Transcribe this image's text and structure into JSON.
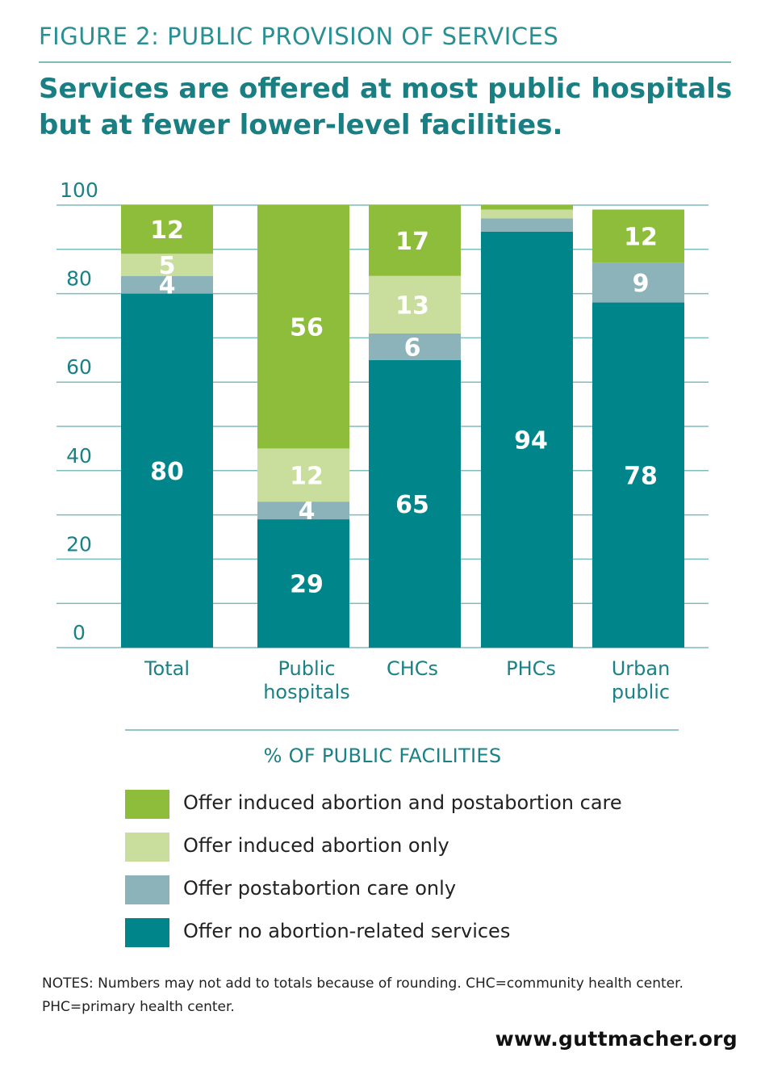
{
  "figure_label": "FIGURE 2: PUBLIC PROVISION OF SERVICES",
  "headline": "Services are offered at most public hospitals but at fewer lower-level facilities.",
  "legend_title": "% OF PUBLIC FACILITIES",
  "notes": "NOTES: Numbers may not add to totals because of rounding. CHC=community health center. PHC=primary health center.",
  "source_url": "www.guttmacher.org",
  "colors": {
    "induced_and_postabortion": "#8dbd3a",
    "induced_only": "#c9de9c",
    "postabortion_only": "#8cb3ba",
    "none": "#00858b",
    "axis_text": "#1a8185",
    "grid": "#7fbcbd"
  },
  "chart_data": {
    "type": "bar",
    "stacked": true,
    "title": "",
    "xlabel": "",
    "ylabel": "",
    "ylim": [
      0,
      100
    ],
    "yticks": [
      0,
      20,
      40,
      60,
      80,
      100
    ],
    "grid": true,
    "categories": [
      [
        "Total"
      ],
      [
        "Public",
        "hospitals"
      ],
      [
        "CHCs"
      ],
      [
        "PHCs"
      ],
      [
        "Urban",
        "public"
      ]
    ],
    "series": [
      {
        "name": "Offer no abortion-related services",
        "key": "none",
        "values": [
          80,
          29,
          65,
          94,
          78
        ],
        "labels": [
          "80",
          "29",
          "65",
          "94",
          "78"
        ]
      },
      {
        "name": "Offer postabortion care only",
        "key": "postabortion_only",
        "values": [
          4,
          4,
          6,
          3,
          9
        ],
        "labels": [
          "4",
          "4",
          "6",
          "",
          "9"
        ]
      },
      {
        "name": "Offer induced abortion only",
        "key": "induced_only",
        "values": [
          5,
          12,
          13,
          2,
          0
        ],
        "labels": [
          "5",
          "12",
          "13",
          "",
          ""
        ]
      },
      {
        "name": "Offer induced abortion and postabortion care",
        "key": "induced_and_postabortion",
        "values": [
          12,
          56,
          17,
          1,
          12
        ],
        "labels": [
          "12",
          "56",
          "17",
          "",
          "12"
        ]
      }
    ],
    "legend_order": [
      "induced_and_postabortion",
      "induced_only",
      "postabortion_only",
      "none"
    ]
  }
}
